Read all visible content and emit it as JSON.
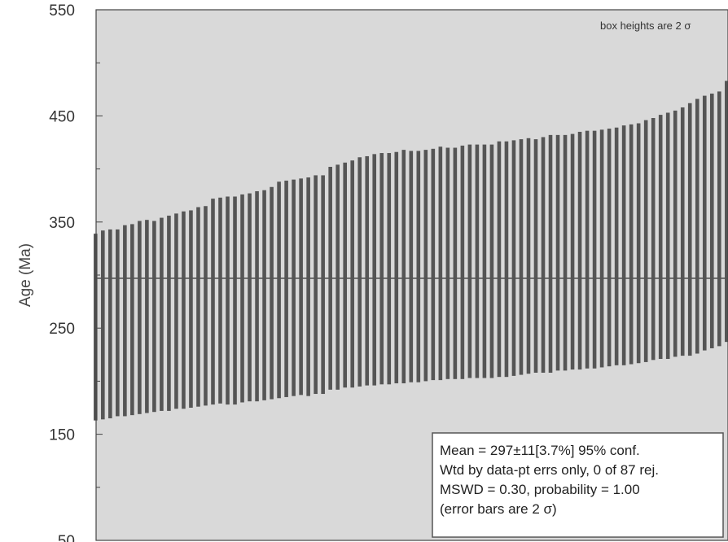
{
  "chart_data": {
    "type": "weighted-mean-bar",
    "ylabel": "Age (Ma)",
    "ylim": [
      50,
      550
    ],
    "yticks": [
      50,
      150,
      250,
      350,
      450,
      550
    ],
    "y_minor_ticks": [
      100,
      200,
      300,
      400,
      500
    ],
    "note": "box heights are 2 σ",
    "mean": 297,
    "n": 87,
    "colors": {
      "background": "#d9d9d9",
      "bar": "#555555",
      "mean_line": "#555555",
      "frame": "#444444"
    },
    "ages": [
      251,
      253,
      254,
      255,
      257,
      258,
      260,
      261,
      261,
      263,
      264,
      266,
      267,
      268,
      270,
      271,
      275,
      276,
      276,
      276,
      278,
      279,
      280,
      281,
      283,
      286,
      287,
      288,
      289,
      289,
      291,
      291,
      297,
      298,
      300,
      301,
      303,
      304,
      305,
      306,
      306,
      307,
      308,
      308,
      308,
      309,
      310,
      311,
      311,
      311,
      312,
      313,
      313,
      313,
      313,
      315,
      315,
      316,
      317,
      318,
      318,
      319,
      320,
      321,
      321,
      322,
      323,
      324,
      324,
      325,
      326,
      327,
      328,
      329,
      330,
      332,
      334,
      336,
      337,
      339,
      341,
      343,
      346,
      349,
      351,
      353,
      360
    ],
    "errors_2s": [
      88,
      89,
      89,
      88,
      90,
      90,
      91,
      91,
      90,
      91,
      92,
      92,
      93,
      93,
      94,
      94,
      97,
      97,
      98,
      98,
      98,
      98,
      99,
      99,
      100,
      102,
      102,
      102,
      102,
      103,
      103,
      103,
      105,
      106,
      106,
      107,
      108,
      108,
      109,
      109,
      109,
      109,
      110,
      109,
      109,
      109,
      109,
      110,
      109,
      109,
      110,
      110,
      110,
      110,
      110,
      111,
      111,
      111,
      111,
      111,
      110,
      111,
      112,
      111,
      111,
      111,
      112,
      112,
      112,
      112,
      112,
      112,
      113,
      113,
      113,
      114,
      114,
      115,
      116,
      116,
      117,
      119,
      120,
      120,
      120,
      120,
      123
    ]
  },
  "stats_box": {
    "line1": "Mean = 297±11[3.7%] 95% conf.",
    "line2": "Wtd by data-pt errs only, 0 of 87 rej.",
    "line3": "MSWD = 0.30, probability = 1.00",
    "line4": "(error bars are 2 σ)"
  }
}
